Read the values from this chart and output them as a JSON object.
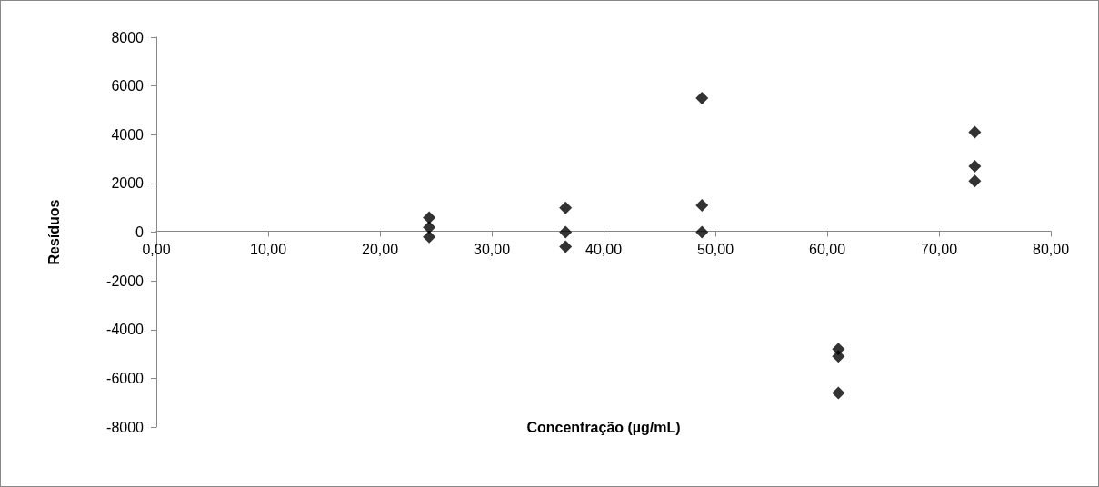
{
  "chart_data": {
    "type": "scatter",
    "xlabel": "Concentração (µg/mL)",
    "ylabel": "Resíduos",
    "series": [
      {
        "color": "#000000",
        "x": [
          24.4,
          24.4,
          24.4,
          36.6,
          36.6,
          36.6,
          48.8,
          48.8,
          48.8,
          61.0,
          61.0,
          61.0,
          73.2,
          73.2,
          73.2
        ],
        "values": [
          600,
          200,
          -200,
          1000,
          0,
          -600,
          5500,
          1100,
          0,
          -4800,
          -5100,
          -6600,
          4100,
          2700,
          2100
        ]
      }
    ],
    "xlim": [
      0,
      80
    ],
    "xticks": [
      {
        "value": 0,
        "label": "0,00"
      },
      {
        "value": 10,
        "label": "10,00"
      },
      {
        "value": 20,
        "label": "20,00"
      },
      {
        "value": 30,
        "label": "30,00"
      },
      {
        "value": 40,
        "label": "40,00"
      },
      {
        "value": 50,
        "label": "50,00"
      },
      {
        "value": 60,
        "label": "60,00"
      },
      {
        "value": 70,
        "label": "70,00"
      },
      {
        "value": 80,
        "label": "80,00"
      }
    ],
    "ylim": [
      -8000,
      8000
    ],
    "yticks": [
      -8000,
      -6000,
      -4000,
      -2000,
      0,
      2000,
      4000,
      6000,
      8000
    ],
    "marker": "diamond",
    "grid": false
  }
}
